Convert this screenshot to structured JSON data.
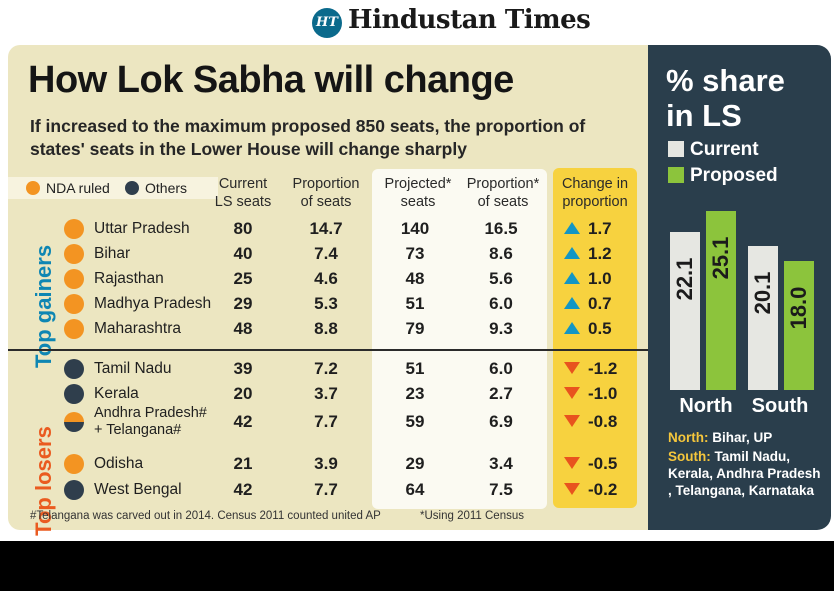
{
  "masthead": {
    "logo_mark": "HT",
    "publication": "Hindustan Times"
  },
  "left": {
    "title": "How Lok Sabha will change",
    "subtitle": "If increased to the maximum proposed 850 seats, the proportion of states' seats in the Lower House will change sharply",
    "legend": {
      "nda": "NDA ruled",
      "others": "Others"
    },
    "columns": {
      "current_seats": [
        "Current",
        "LS seats"
      ],
      "current_prop": [
        "Proportion",
        "of seats"
      ],
      "proj_seats": [
        "Projected*",
        "seats"
      ],
      "proj_prop": [
        "Proportion*",
        "of seats"
      ],
      "change": [
        "Change in",
        "proportion"
      ]
    },
    "groups": {
      "gainers": "Top gainers",
      "losers": "Top losers"
    },
    "footnote_left": "#Telangana was carved out in 2014. Census 2011 counted united AP",
    "footnote_right": "*Using 2011 Census",
    "colors": {
      "nda": "#f39422",
      "others": "#2f3e4c",
      "gainer": "#1296c4",
      "loser": "#e8531e",
      "highlight": "#f7d23f"
    }
  },
  "chart_data": [
    {
      "type": "table",
      "title": "How Lok Sabha will change",
      "rows": [
        {
          "state": "Uttar Pradesh",
          "ruled_by": "NDA ruled",
          "current_seats": "80",
          "current_prop": "14.7",
          "projected_seats": "140",
          "projected_prop": "16.5",
          "change": "1.7",
          "direction": "up"
        },
        {
          "state": "Bihar",
          "ruled_by": "NDA ruled",
          "current_seats": "40",
          "current_prop": "7.4",
          "projected_seats": "73",
          "projected_prop": "8.6",
          "change": "1.2",
          "direction": "up"
        },
        {
          "state": "Rajasthan",
          "ruled_by": "NDA ruled",
          "current_seats": "25",
          "current_prop": "4.6",
          "projected_seats": "48",
          "projected_prop": "5.6",
          "change": "1.0",
          "direction": "up"
        },
        {
          "state": "Madhya Pradesh",
          "ruled_by": "NDA ruled",
          "current_seats": "29",
          "current_prop": "5.3",
          "projected_seats": "51",
          "projected_prop": "6.0",
          "change": "0.7",
          "direction": "up"
        },
        {
          "state": "Maharashtra",
          "ruled_by": "NDA ruled",
          "current_seats": "48",
          "current_prop": "8.8",
          "projected_seats": "79",
          "projected_prop": "9.3",
          "change": "0.5",
          "direction": "up"
        },
        {
          "state": "Tamil Nadu",
          "ruled_by": "Others",
          "current_seats": "39",
          "current_prop": "7.2",
          "projected_seats": "51",
          "projected_prop": "6.0",
          "change": "-1.2",
          "direction": "down"
        },
        {
          "state": "Kerala",
          "ruled_by": "Others",
          "current_seats": "20",
          "current_prop": "3.7",
          "projected_seats": "23",
          "projected_prop": "2.7",
          "change": "-1.0",
          "direction": "down"
        },
        {
          "state_line1": "Andhra Pradesh#",
          "state_line2": "+ Telangana#",
          "ruled_by": "Mixed",
          "current_seats": "42",
          "current_prop": "7.7",
          "projected_seats": "59",
          "projected_prop": "6.9",
          "change": "-0.8",
          "direction": "down"
        },
        {
          "state": "Odisha",
          "ruled_by": "NDA ruled",
          "current_seats": "21",
          "current_prop": "3.9",
          "projected_seats": "29",
          "projected_prop": "3.4",
          "change": "-0.5",
          "direction": "down"
        },
        {
          "state": "West Bengal",
          "ruled_by": "Others",
          "current_seats": "42",
          "current_prop": "7.7",
          "projected_seats": "64",
          "projected_prop": "7.5",
          "change": "-0.2",
          "direction": "down"
        }
      ]
    },
    {
      "type": "bar",
      "title": "% share in LS",
      "categories": [
        "North",
        "South"
      ],
      "series": [
        {
          "name": "Current",
          "values": [
            22.1,
            20.1
          ],
          "labels": [
            "22.1",
            "20.1"
          ],
          "color": "#e6e7e2"
        },
        {
          "name": "Proposed",
          "values": [
            25.1,
            18.0
          ],
          "labels": [
            "25.1",
            "18.0"
          ],
          "color": "#8cc43c"
        }
      ],
      "ylim": [
        0,
        28
      ],
      "notes": [
        {
          "key": "North:",
          "text": " Bihar, UP"
        },
        {
          "key": "South:",
          "text": " Tamil Nadu, Kerala, Andhra Pradesh , Telangana, Karnataka"
        }
      ]
    }
  ]
}
